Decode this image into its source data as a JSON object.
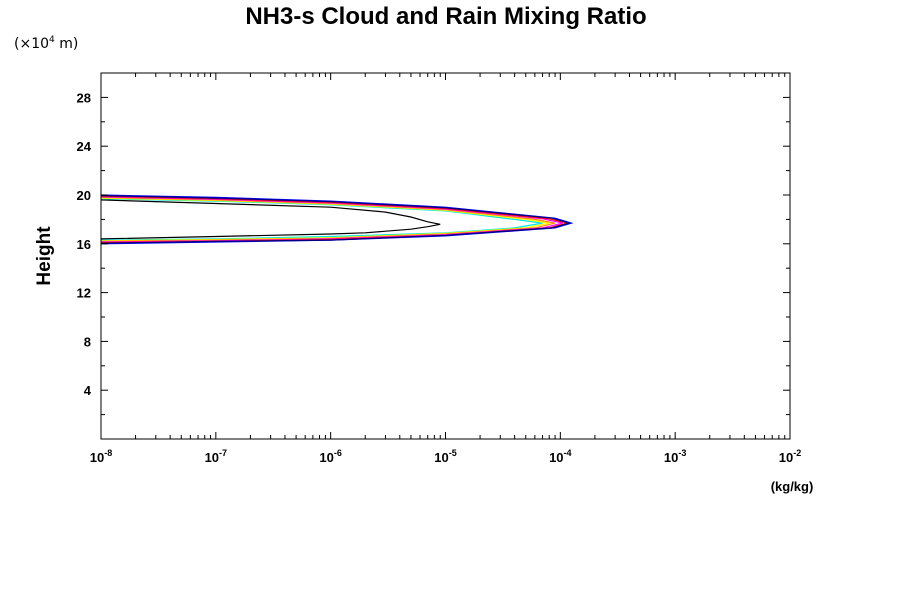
{
  "chart_data": {
    "type": "line",
    "title": "NH3-s Cloud and Rain Mixing Ratio",
    "y_unit_note": "(×10",
    "y_unit_exp": "4",
    "y_unit_tail": " m)",
    "ylabel": "Height",
    "xlabel": "(kg/kg)",
    "xscale": "log",
    "xlim": [
      1e-08,
      0.01
    ],
    "ylim": [
      0,
      30
    ],
    "grid": false,
    "x_ticks": [
      {
        "base": "10",
        "exp": "-8",
        "value": 1e-08
      },
      {
        "base": "10",
        "exp": "-7",
        "value": 1e-07
      },
      {
        "base": "10",
        "exp": "-6",
        "value": 1e-06
      },
      {
        "base": "10",
        "exp": "-5",
        "value": 1e-05
      },
      {
        "base": "10",
        "exp": "-4",
        "value": 0.0001
      },
      {
        "base": "10",
        "exp": "-3",
        "value": 0.001
      },
      {
        "base": "10",
        "exp": "-2",
        "value": 0.01
      }
    ],
    "y_ticks": [
      "4",
      "8",
      "12",
      "16",
      "20",
      "24",
      "28"
    ],
    "series": [
      {
        "color": "#000000",
        "points": [
          [
            1e-08,
            19.6
          ],
          [
            1e-07,
            19.3
          ],
          [
            1e-06,
            19.0
          ],
          [
            3e-06,
            18.6
          ],
          [
            5e-06,
            18.2
          ],
          [
            7e-06,
            17.8
          ],
          [
            9e-06,
            17.6
          ],
          [
            7e-06,
            17.4
          ],
          [
            5e-06,
            17.2
          ],
          [
            2e-06,
            16.9
          ],
          [
            1e-06,
            16.8
          ],
          [
            1e-07,
            16.6
          ],
          [
            1e-08,
            16.4
          ]
        ]
      },
      {
        "color": "#00e5e5",
        "points": [
          [
            1e-08,
            19.7
          ],
          [
            1e-07,
            19.5
          ],
          [
            1e-06,
            19.2
          ],
          [
            1e-05,
            18.7
          ],
          [
            4e-05,
            18.0
          ],
          [
            7e-05,
            17.7
          ],
          [
            4e-05,
            17.3
          ],
          [
            1e-05,
            16.9
          ],
          [
            1e-06,
            16.6
          ],
          [
            1e-07,
            16.4
          ],
          [
            1e-08,
            16.3
          ]
        ]
      },
      {
        "color": "#ffff00",
        "points": [
          [
            1e-08,
            19.75
          ],
          [
            1e-07,
            19.55
          ],
          [
            1e-06,
            19.25
          ],
          [
            1e-05,
            18.75
          ],
          [
            5e-05,
            18.0
          ],
          [
            8e-05,
            17.7
          ],
          [
            5e-05,
            17.3
          ],
          [
            1e-05,
            16.85
          ],
          [
            1e-06,
            16.5
          ],
          [
            1e-07,
            16.35
          ],
          [
            1e-08,
            16.25
          ]
        ]
      },
      {
        "color": "#ff8c00",
        "points": [
          [
            1e-08,
            19.8
          ],
          [
            1e-07,
            19.6
          ],
          [
            1e-06,
            19.3
          ],
          [
            1e-05,
            18.8
          ],
          [
            6e-05,
            18.0
          ],
          [
            9e-05,
            17.7
          ],
          [
            6e-05,
            17.3
          ],
          [
            1e-05,
            16.8
          ],
          [
            1e-06,
            16.45
          ],
          [
            1e-07,
            16.3
          ],
          [
            1e-08,
            16.2
          ]
        ]
      },
      {
        "color": "#ff00ff",
        "points": [
          [
            1e-08,
            19.85
          ],
          [
            1e-07,
            19.65
          ],
          [
            1e-06,
            19.35
          ],
          [
            1e-05,
            18.85
          ],
          [
            7e-05,
            18.05
          ],
          [
            0.000105,
            17.7
          ],
          [
            7e-05,
            17.3
          ],
          [
            1e-05,
            16.75
          ],
          [
            1e-06,
            16.4
          ],
          [
            1e-07,
            16.25
          ],
          [
            1e-08,
            16.15
          ]
        ]
      },
      {
        "color": "#ff0000",
        "points": [
          [
            1e-08,
            19.9
          ],
          [
            1e-07,
            19.7
          ],
          [
            1e-06,
            19.4
          ],
          [
            1e-05,
            18.9
          ],
          [
            8e-05,
            18.05
          ],
          [
            0.000115,
            17.7
          ],
          [
            8e-05,
            17.3
          ],
          [
            1e-05,
            16.7
          ],
          [
            1e-06,
            16.35
          ],
          [
            1e-07,
            16.2
          ],
          [
            1e-08,
            16.1
          ]
        ]
      },
      {
        "color": "#0000ff",
        "points": [
          [
            1e-08,
            20.0
          ],
          [
            1e-07,
            19.8
          ],
          [
            1e-06,
            19.5
          ],
          [
            1e-05,
            19.0
          ],
          [
            9e-05,
            18.1
          ],
          [
            0.000125,
            17.7
          ],
          [
            9e-05,
            17.3
          ],
          [
            1e-05,
            16.65
          ],
          [
            1e-06,
            16.3
          ],
          [
            1e-07,
            16.15
          ],
          [
            1e-08,
            16.0
          ]
        ]
      },
      {
        "color": "#000080",
        "points": [
          [
            1e-08,
            19.95
          ],
          [
            1e-07,
            19.75
          ],
          [
            1e-06,
            19.45
          ],
          [
            1e-05,
            18.95
          ],
          [
            8.5e-05,
            18.1
          ],
          [
            0.00012,
            17.7
          ],
          [
            8.5e-05,
            17.3
          ],
          [
            1e-05,
            16.7
          ],
          [
            1e-06,
            16.3
          ],
          [
            1e-07,
            16.2
          ],
          [
            1e-08,
            16.05
          ]
        ]
      }
    ]
  }
}
